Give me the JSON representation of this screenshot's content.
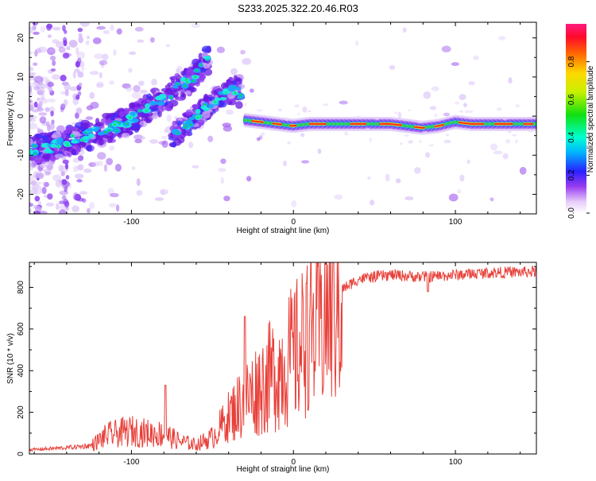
{
  "title": "S233.2025.322.20.46.R03",
  "chart_data": [
    {
      "type": "heatmap",
      "name": "spectrogram",
      "xlabel": "Height of straight line (km)",
      "ylabel": "Frequency (Hz)",
      "xlim": [
        -163,
        150
      ],
      "ylim": [
        -25,
        24
      ],
      "xticks": [
        -100,
        0,
        100
      ],
      "yticks": [
        -20,
        -10,
        0,
        10,
        20
      ],
      "xtick_labels": [
        "-100",
        "0",
        "100"
      ],
      "ytick_labels": [
        "-20",
        "-10",
        "0",
        "10",
        "20"
      ],
      "ridge": [
        {
          "x": -163,
          "y": -9
        },
        {
          "x": -150,
          "y": -8
        },
        {
          "x": -135,
          "y": -6
        },
        {
          "x": -120,
          "y": -4
        },
        {
          "x": -105,
          "y": -2
        },
        {
          "x": -90,
          "y": 2
        },
        {
          "x": -75,
          "y": 6
        },
        {
          "x": -62,
          "y": 10
        },
        {
          "x": -52,
          "y": 15
        }
      ],
      "ridge2": [
        {
          "x": -75,
          "y": -5
        },
        {
          "x": -65,
          "y": -2
        },
        {
          "x": -55,
          "y": 2
        },
        {
          "x": -45,
          "y": 5
        },
        {
          "x": -35,
          "y": 7
        },
        {
          "x": -30,
          "y": 3
        }
      ],
      "tone": [
        {
          "x": -30,
          "y": -1
        },
        {
          "x": -20,
          "y": -1.5
        },
        {
          "x": -10,
          "y": -2
        },
        {
          "x": 0,
          "y": -2.5
        },
        {
          "x": 10,
          "y": -2
        },
        {
          "x": 20,
          "y": -2
        },
        {
          "x": 40,
          "y": -2
        },
        {
          "x": 60,
          "y": -2
        },
        {
          "x": 70,
          "y": -2.5
        },
        {
          "x": 80,
          "y": -3
        },
        {
          "x": 90,
          "y": -2.5
        },
        {
          "x": 100,
          "y": -1.5
        },
        {
          "x": 110,
          "y": -2
        },
        {
          "x": 150,
          "y": -2
        }
      ]
    },
    {
      "type": "colorbar",
      "label": "Normalized spectral amplitude",
      "range": [
        0,
        1
      ],
      "ticks": [
        "0.0",
        "0.2",
        "0.4",
        "0.6",
        "0.8"
      ],
      "tick_values": [
        0,
        0.2,
        0.4,
        0.6,
        0.8
      ]
    },
    {
      "type": "line",
      "name": "snr",
      "xlabel": "Height of straight line (km)",
      "ylabel": "SNR (10 * v/v)",
      "xlim": [
        -163,
        150
      ],
      "ylim": [
        0,
        920
      ],
      "xticks": [
        -100,
        0,
        100
      ],
      "yticks": [
        0,
        200,
        400,
        600,
        800
      ],
      "xtick_labels": [
        "-100",
        "0",
        "100"
      ],
      "ytick_labels": [
        "0",
        "200",
        "400",
        "600",
        "800"
      ],
      "color": "#e8403a",
      "envelope": [
        {
          "x": -163,
          "y": 20
        },
        {
          "x": -140,
          "y": 30
        },
        {
          "x": -125,
          "y": 40
        },
        {
          "x": -115,
          "y": 90
        },
        {
          "x": -100,
          "y": 110
        },
        {
          "x": -90,
          "y": 100
        },
        {
          "x": -80,
          "y": 95
        },
        {
          "x": -70,
          "y": 60
        },
        {
          "x": -60,
          "y": 45
        },
        {
          "x": -50,
          "y": 80
        },
        {
          "x": -40,
          "y": 180
        },
        {
          "x": -30,
          "y": 260
        },
        {
          "x": -20,
          "y": 330
        },
        {
          "x": -10,
          "y": 400
        },
        {
          "x": 0,
          "y": 470
        },
        {
          "x": 10,
          "y": 560
        },
        {
          "x": 20,
          "y": 680
        },
        {
          "x": 30,
          "y": 790
        },
        {
          "x": 40,
          "y": 840
        },
        {
          "x": 60,
          "y": 860
        },
        {
          "x": 80,
          "y": 850
        },
        {
          "x": 100,
          "y": 860
        },
        {
          "x": 120,
          "y": 870
        },
        {
          "x": 150,
          "y": 875
        }
      ],
      "spikes": [
        {
          "x": -79,
          "y": 330
        },
        {
          "x": -30,
          "y": 660
        },
        {
          "x": 8,
          "y": 820
        },
        {
          "x": 9,
          "y": 210
        },
        {
          "x": 83,
          "y": 780
        }
      ]
    }
  ]
}
